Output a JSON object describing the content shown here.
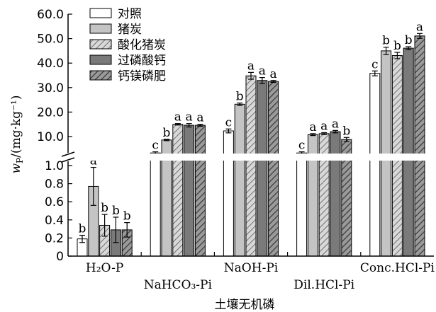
{
  "chart_data": {
    "type": "bar",
    "xlabel": "土壤无机磷",
    "ylabel": "wP/(mg·kg⁻¹)",
    "categories": [
      "H₂O-P",
      "NaHCO₃-Pi",
      "NaOH-Pi",
      "Dil.HCl-Pi",
      "Conc.HCl-Pi"
    ],
    "lower_axis": {
      "range": [
        0,
        1.0
      ],
      "ticks": [
        "0",
        "0.2",
        "0.4",
        "0.6",
        "0.8",
        "1.0"
      ]
    },
    "upper_axis": {
      "range": [
        1.0,
        60.0
      ],
      "ticks": [
        "10.0",
        "20.0",
        "30.0",
        "40.0",
        "50.0",
        "60.0"
      ]
    },
    "axis_break": true,
    "legend_position": "top-left",
    "series": [
      {
        "name": "对照",
        "pattern": "white",
        "values": [
          0.19,
          2.8,
          12.3,
          2.8,
          35.8
        ],
        "errors": [
          0.04,
          0.5,
          0.8,
          0.5,
          1.0
        ],
        "sig": [
          "b",
          "c",
          "c",
          "c",
          "c"
        ]
      },
      {
        "name": "猪炭",
        "pattern": "lightgray",
        "values": [
          0.77,
          8.5,
          23.2,
          10.8,
          45.0
        ],
        "errors": [
          0.21,
          0.3,
          0.5,
          0.4,
          1.5
        ],
        "sig": [
          "a",
          "b",
          "b",
          "a",
          "b"
        ]
      },
      {
        "name": "酸化猪炭",
        "pattern": "hatch-light",
        "values": [
          0.34,
          15.0,
          34.8,
          11.2,
          43.1
        ],
        "errors": [
          0.12,
          0.3,
          1.4,
          0.4,
          1.3
        ],
        "sig": [
          "b",
          "a",
          "a",
          "a",
          "b"
        ]
      },
      {
        "name": "过磷酸钙",
        "pattern": "darkgray",
        "values": [
          0.29,
          14.6,
          32.9,
          12.0,
          46.1
        ],
        "errors": [
          0.14,
          0.7,
          1.2,
          0.5,
          0.6
        ],
        "sig": [
          "b",
          "a",
          "a",
          "a",
          "b"
        ]
      },
      {
        "name": "钙镁磷肥",
        "pattern": "hatch-dark",
        "values": [
          0.29,
          14.6,
          32.5,
          8.7,
          51.1
        ],
        "errors": [
          0.08,
          0.4,
          0.4,
          0.9,
          1.0
        ],
        "sig": [
          "b",
          "a",
          "a",
          "b",
          "a"
        ]
      }
    ]
  }
}
